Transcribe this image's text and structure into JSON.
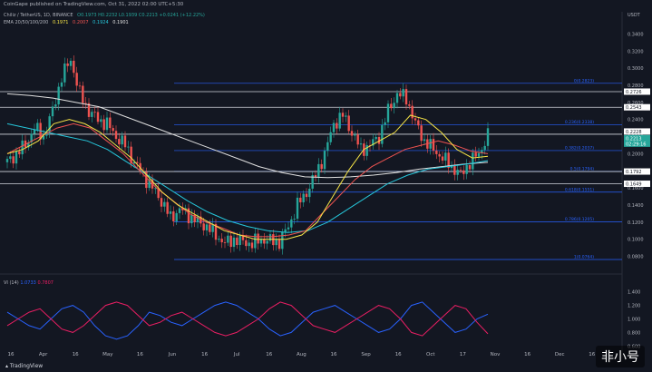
{
  "header": {
    "publisher": "CoinGape published on TradingView.com, Oct 31, 2022 02:00 UTC+5:30"
  },
  "legend": {
    "symbol": "Chiliz / TetherUS, 1D, BINANCE",
    "ohlc": "O0.1973  H0.2232  L0.1939  C0.2213  +0.0241 (+12.22%)",
    "ema_label": "EMA 20/50/100/200",
    "ema_values": [
      "0.1971",
      "0.2007",
      "0.1924",
      "0.1901"
    ]
  },
  "indicator": {
    "label": "VI (14)",
    "v1": "1.0733",
    "v2": "0.7807"
  },
  "footer": {
    "brand": "TradingView"
  },
  "watermark": {
    "text": "非小号"
  },
  "colors": {
    "up": "#26a69a",
    "down": "#ef5350",
    "ema20": "#f7e547",
    "ema50": "#ef5350",
    "ema100": "#26c6da",
    "ema200": "#e0e0e0",
    "fib": "#2962ff",
    "vi_plus": "#2962ff",
    "vi_minus": "#e91e63"
  },
  "chart_data": [
    {
      "type": "candlestick",
      "ylabel": "USDT",
      "y_ticks": [
        "0.3400",
        "0.3200",
        "0.3000",
        "0.2800",
        "0.2600",
        "0.2400",
        "0.2200",
        "0.2000",
        "0.1800",
        "0.1600",
        "0.1400",
        "0.1200",
        "0.1000",
        "0.0800"
      ],
      "ylim": [
        0.07,
        0.35
      ],
      "x_ticks": [
        "16",
        "Apr",
        "16",
        "May",
        "16",
        "Jun",
        "16",
        "Jul",
        "16",
        "Aug",
        "16",
        "Sep",
        "16",
        "Oct",
        "17",
        "Nov",
        "16",
        "Dec",
        "16"
      ],
      "fib_levels": [
        {
          "label": "0(0.2823)",
          "value": 0.2823
        },
        {
          "label": "0.236(0.2338)",
          "value": 0.2338
        },
        {
          "label": "0.382(0.2037)",
          "value": 0.2037
        },
        {
          "label": "0.5(0.1794)",
          "value": 0.1794
        },
        {
          "label": "0.618(0.1551)",
          "value": 0.1551
        },
        {
          "label": "0.786(0.1205)",
          "value": 0.1205
        },
        {
          "label": "1(0.0764)",
          "value": 0.0764
        }
      ],
      "horizontal_levels": [
        0.2726,
        0.2543,
        0.2228,
        0.1792,
        0.1649
      ],
      "price_labels": [
        {
          "text": "0.2726"
        },
        {
          "text": "0.2543"
        },
        {
          "text": "0.2228"
        },
        {
          "text": "0.2213"
        },
        {
          "text": "02:29:16"
        },
        {
          "text": "0.1792"
        },
        {
          "text": "0.1649"
        }
      ],
      "price_path": [
        0.19,
        0.2,
        0.21,
        0.23,
        0.22,
        0.25,
        0.29,
        0.31,
        0.27,
        0.25,
        0.24,
        0.235,
        0.22,
        0.21,
        0.19,
        0.175,
        0.16,
        0.145,
        0.125,
        0.135,
        0.128,
        0.12,
        0.115,
        0.105,
        0.095,
        0.1,
        0.097,
        0.095,
        0.1,
        0.098,
        0.097,
        0.115,
        0.14,
        0.155,
        0.175,
        0.2,
        0.235,
        0.245,
        0.225,
        0.205,
        0.21,
        0.22,
        0.25,
        0.27,
        0.265,
        0.235,
        0.215,
        0.205,
        0.195,
        0.185,
        0.175,
        0.19,
        0.2,
        0.2213
      ],
      "ema20": [
        0.2,
        0.205,
        0.215,
        0.235,
        0.24,
        0.235,
        0.225,
        0.21,
        0.195,
        0.175,
        0.155,
        0.14,
        0.13,
        0.12,
        0.11,
        0.105,
        0.1,
        0.1,
        0.1,
        0.105,
        0.12,
        0.15,
        0.18,
        0.205,
        0.215,
        0.225,
        0.245,
        0.24,
        0.225,
        0.205,
        0.195,
        0.197
      ],
      "ema50": [
        0.2,
        0.21,
        0.22,
        0.23,
        0.235,
        0.23,
        0.215,
        0.2,
        0.18,
        0.16,
        0.145,
        0.13,
        0.12,
        0.113,
        0.105,
        0.103,
        0.103,
        0.105,
        0.11,
        0.13,
        0.15,
        0.17,
        0.185,
        0.195,
        0.205,
        0.21,
        0.215,
        0.21,
        0.203,
        0.2
      ],
      "ema100": [
        0.235,
        0.23,
        0.225,
        0.22,
        0.215,
        0.205,
        0.19,
        0.175,
        0.16,
        0.145,
        0.132,
        0.122,
        0.115,
        0.11,
        0.108,
        0.11,
        0.12,
        0.135,
        0.15,
        0.165,
        0.175,
        0.182,
        0.185,
        0.188,
        0.192
      ],
      "ema200": [
        0.27,
        0.268,
        0.265,
        0.26,
        0.255,
        0.245,
        0.235,
        0.225,
        0.215,
        0.205,
        0.195,
        0.185,
        0.178,
        0.173,
        0.172,
        0.173,
        0.175,
        0.178,
        0.182,
        0.185,
        0.188,
        0.19
      ]
    },
    {
      "type": "line",
      "title": "VI (14)",
      "y_ticks": [
        "1.400",
        "1.200",
        "1.000",
        "0.800",
        "0.600"
      ],
      "ylim": [
        0.55,
        1.45
      ],
      "series": [
        {
          "name": "VI+",
          "values": [
            1.1,
            1.0,
            0.9,
            0.85,
            1.0,
            1.15,
            1.2,
            1.1,
            0.9,
            0.75,
            0.7,
            0.75,
            0.9,
            1.1,
            1.05,
            0.95,
            0.9,
            1.0,
            1.1,
            1.2,
            1.25,
            1.2,
            1.1,
            1.0,
            0.85,
            0.75,
            0.8,
            0.95,
            1.1,
            1.15,
            1.2,
            1.1,
            1.0,
            0.9,
            0.8,
            0.85,
            1.0,
            1.2,
            1.25,
            1.1,
            0.95,
            0.8,
            0.85,
            1.0,
            1.07
          ]
        },
        {
          "name": "VI-",
          "values": [
            0.9,
            1.0,
            1.1,
            1.15,
            1.0,
            0.85,
            0.8,
            0.9,
            1.05,
            1.2,
            1.25,
            1.2,
            1.05,
            0.9,
            0.95,
            1.05,
            1.1,
            1.0,
            0.9,
            0.8,
            0.75,
            0.8,
            0.9,
            1.0,
            1.15,
            1.25,
            1.2,
            1.05,
            0.9,
            0.85,
            0.8,
            0.9,
            1.0,
            1.1,
            1.2,
            1.15,
            1.0,
            0.8,
            0.75,
            0.9,
            1.05,
            1.2,
            1.15,
            0.95,
            0.78
          ]
        }
      ]
    }
  ]
}
